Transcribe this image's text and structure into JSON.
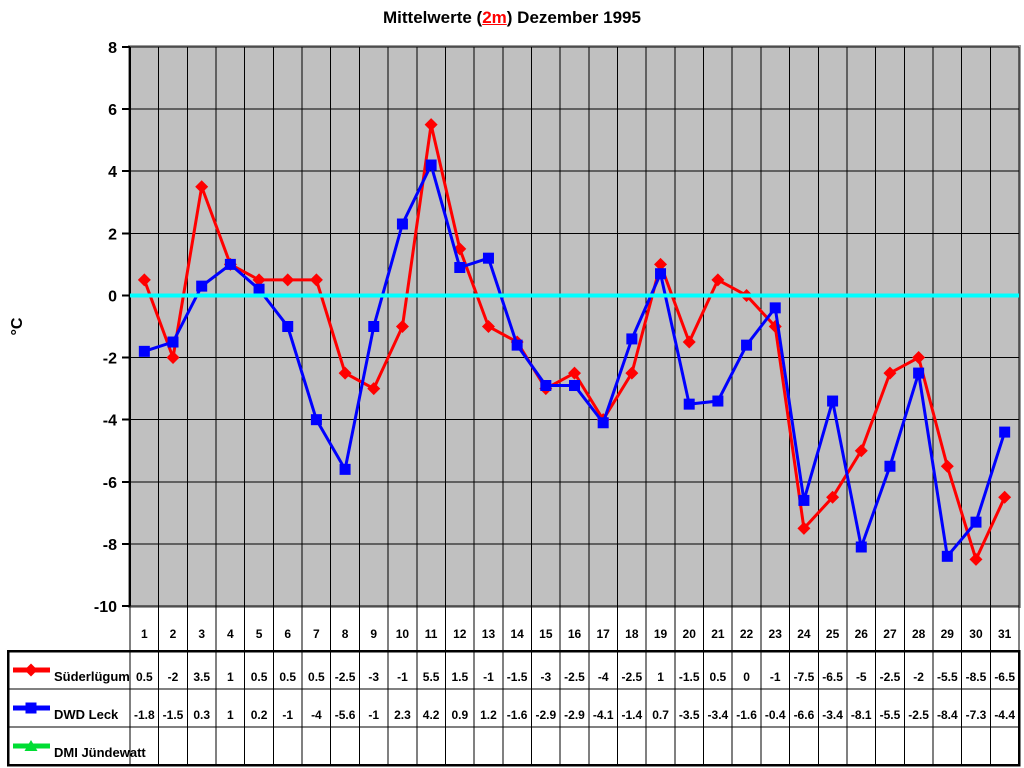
{
  "title": {
    "prefix": "Mittelwerte (",
    "highlight": "2m",
    "suffix": ") Dezember 1995",
    "highlight_color": "#ff0000"
  },
  "chart_data": {
    "type": "line",
    "title": "Mittelwerte (2m) Dezember 1995",
    "xlabel": "",
    "ylabel": "°C",
    "ylim": [
      -10,
      8
    ],
    "ytick_step": 2,
    "yticks": [
      8,
      6,
      4,
      2,
      0,
      -2,
      -4,
      -6,
      -8,
      -10
    ],
    "grid": true,
    "plot_background": "#c0c0c0",
    "gridline_color": "#000000",
    "zero_line_color": "#00ffff",
    "legend_position": "table-left",
    "x": [
      1,
      2,
      3,
      4,
      5,
      6,
      7,
      8,
      9,
      10,
      11,
      12,
      13,
      14,
      15,
      16,
      17,
      18,
      19,
      20,
      21,
      22,
      23,
      24,
      25,
      26,
      27,
      28,
      29,
      30,
      31
    ],
    "series": [
      {
        "name": "Süderlügum",
        "color": "#ff0000",
        "marker": "diamond",
        "values": [
          0.5,
          -2,
          3.5,
          1,
          0.5,
          0.5,
          0.5,
          -2.5,
          -3,
          -1,
          5.5,
          1.5,
          -1,
          -1.5,
          -3,
          -2.5,
          -4,
          -2.5,
          1,
          -1.5,
          0.5,
          0,
          -1,
          -7.5,
          -6.5,
          -5,
          -2.5,
          -2,
          -5.5,
          -8.5,
          -6.5
        ]
      },
      {
        "name": "DWD Leck",
        "color": "#0000ff",
        "marker": "square",
        "values": [
          -1.8,
          -1.5,
          0.3,
          1,
          0.2,
          -1,
          -4,
          -5.6,
          -1,
          2.3,
          4.2,
          0.9,
          1.2,
          -1.6,
          -2.9,
          -2.9,
          -4.1,
          -1.4,
          0.7,
          -3.5,
          -3.4,
          -1.6,
          -0.4,
          -6.6,
          -3.4,
          -8.1,
          -5.5,
          -2.5,
          -8.4,
          -7.3,
          -4.4
        ]
      },
      {
        "name": "DMI Jündewatt",
        "color": "#00dd33",
        "marker": "triangle",
        "values": []
      }
    ]
  }
}
